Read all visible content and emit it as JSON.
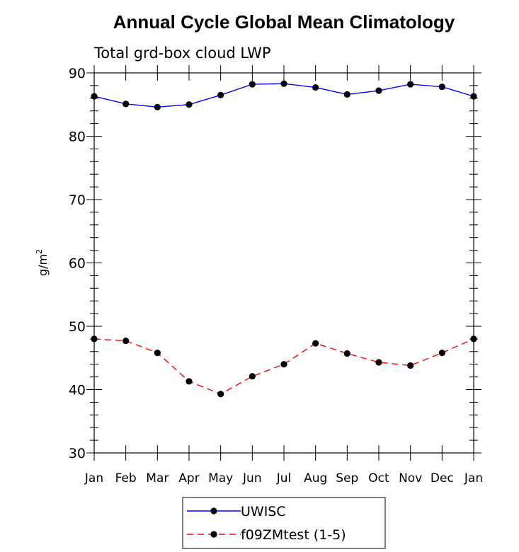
{
  "chart_data": {
    "type": "line",
    "title": "Annual Cycle Global Mean Climatology",
    "subtitle": "Total grd-box cloud LWP",
    "xlabel": "",
    "ylabel": "g/m",
    "ylabel_superscript": "2",
    "categories": [
      "Jan",
      "Feb",
      "Mar",
      "Apr",
      "May",
      "Jun",
      "Jul",
      "Aug",
      "Sep",
      "Oct",
      "Nov",
      "Dec",
      "Jan"
    ],
    "ylim": [
      30,
      90
    ],
    "yticks": [
      "30",
      "40",
      "50",
      "60",
      "70",
      "80",
      "90"
    ],
    "grid": false,
    "legend_position": "bottom-center",
    "series": [
      {
        "name": "UWISC",
        "color": "#0000ff",
        "line_style": "solid",
        "marker": "filled-circle",
        "values": [
          86.3,
          85.1,
          84.6,
          85.0,
          86.5,
          88.2,
          88.3,
          87.7,
          86.6,
          87.2,
          88.2,
          87.8,
          86.3
        ]
      },
      {
        "name": "f09ZMtest (1-5)",
        "color": "#ff0000",
        "line_style": "dashed",
        "marker": "filled-circle",
        "values": [
          48.0,
          47.7,
          45.8,
          41.3,
          39.3,
          42.1,
          44.0,
          47.3,
          45.7,
          44.3,
          43.8,
          45.8,
          48.0
        ]
      }
    ]
  }
}
